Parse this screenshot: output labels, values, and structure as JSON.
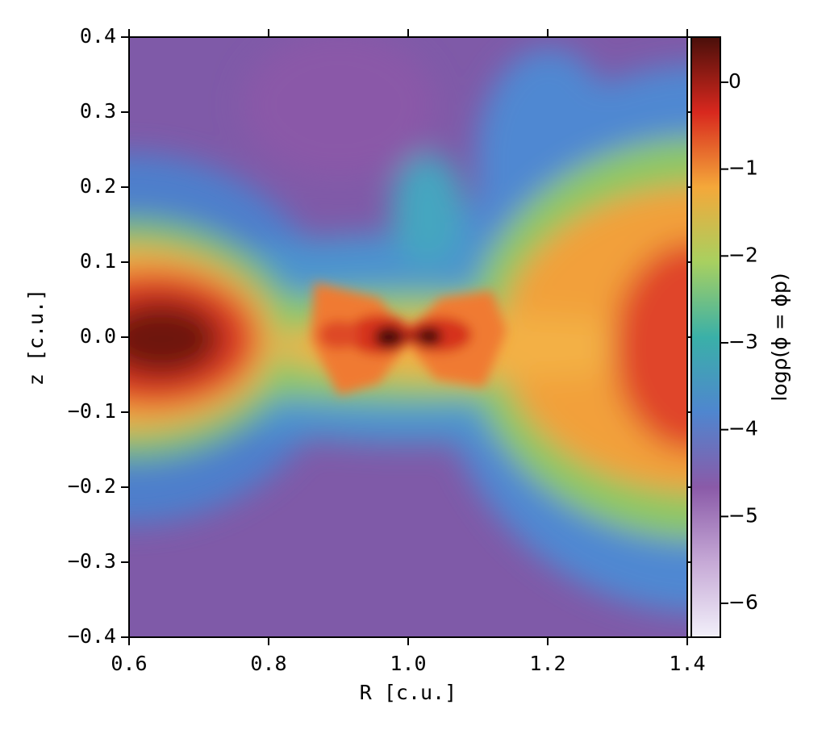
{
  "chart_data": {
    "type": "heatmap",
    "x_label": "R [c.u.]",
    "y_label": "z [c.u.]",
    "colorbar_label": "logρ(ϕ = ϕp)",
    "xlim": [
      0.6,
      1.4
    ],
    "xticks": [
      0.6,
      0.8,
      {
        "value": 1,
        "label": "1.0"
      },
      1.2,
      1.4
    ],
    "ylim": [
      -0.4,
      0.4
    ],
    "yticks": [
      {
        "value": -0.4,
        "label": "−0.4"
      },
      {
        "value": -0.3,
        "label": "−0.3"
      },
      {
        "value": -0.2,
        "label": "−0.2"
      },
      {
        "value": -0.1,
        "label": "−0.1"
      },
      {
        "value": 0,
        "label": "0.0"
      },
      0.1,
      0.2,
      0.3,
      0.4
    ],
    "clim": [
      -6.39,
      0.52
    ],
    "cticks": [
      {
        "value": -6,
        "label": "−6"
      },
      {
        "value": -5,
        "label": "−5"
      },
      {
        "value": -4,
        "label": "−4"
      },
      {
        "value": -3,
        "label": "−3"
      },
      {
        "value": -2,
        "label": "−2"
      },
      {
        "value": -1,
        "label": "−1"
      },
      0
    ],
    "colormap": [
      "#f2f0fa",
      "#c6a9d6",
      "#8a5aa8",
      "#4f86cf",
      "#3ab0a8",
      "#a8d060",
      "#f4a83a",
      "#d8281e",
      "#4a0f0a"
    ]
  }
}
